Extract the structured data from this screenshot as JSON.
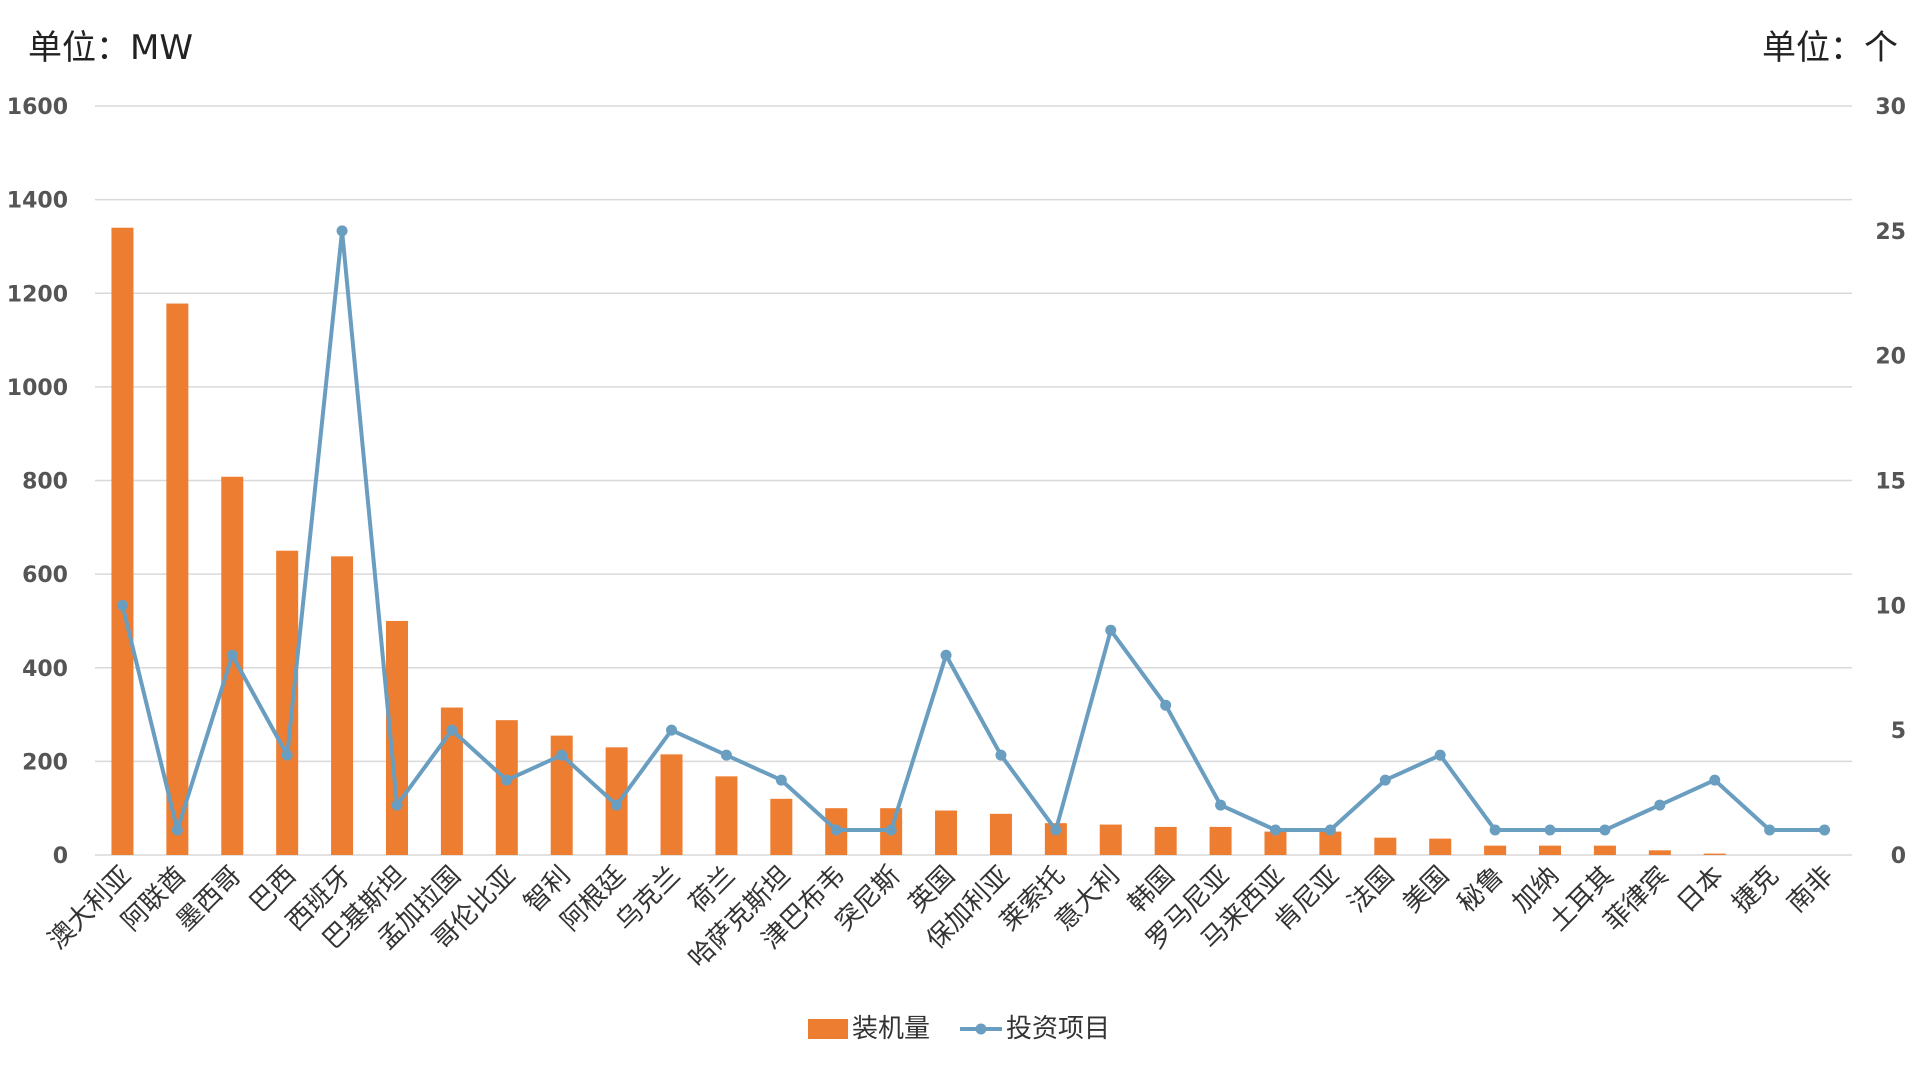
{
  "units": {
    "left": "单位：MW",
    "right": "单位：个"
  },
  "colors": {
    "bar": "#ED7D31",
    "line": "#6A9EC0",
    "grid": "#D9D9D9"
  },
  "chart_data": {
    "type": "bar",
    "categories": [
      "澳大利亚",
      "阿联酋",
      "墨西哥",
      "巴西",
      "西班牙",
      "巴基斯坦",
      "孟加拉国",
      "哥伦比亚",
      "智利",
      "阿根廷",
      "乌克兰",
      "荷兰",
      "哈萨克斯坦",
      "津巴布韦",
      "突尼斯",
      "英国",
      "保加利亚",
      "莱索托",
      "意大利",
      "韩国",
      "罗马尼亚",
      "马来西亚",
      "肯尼亚",
      "法国",
      "美国",
      "秘鲁",
      "加纳",
      "土耳其",
      "菲律宾",
      "日本",
      "捷克",
      "南非"
    ],
    "series": [
      {
        "name": "装机量",
        "type": "bar",
        "axis": "left",
        "values": [
          1340,
          1178,
          808,
          650,
          638,
          500,
          315,
          288,
          255,
          230,
          215,
          168,
          120,
          100,
          100,
          95,
          88,
          68,
          65,
          60,
          60,
          50,
          50,
          37,
          35,
          20,
          20,
          20,
          10,
          3,
          0,
          0
        ]
      },
      {
        "name": "投资项目",
        "type": "line",
        "axis": "right",
        "values": [
          10,
          1,
          8,
          4,
          25,
          2,
          5,
          3,
          4,
          2,
          5,
          4,
          3,
          1,
          1,
          8,
          4,
          1,
          9,
          6,
          2,
          1,
          1,
          3,
          4,
          1,
          1,
          1,
          2,
          3,
          1,
          1
        ]
      }
    ],
    "yleft": {
      "min": 0,
      "max": 1600,
      "ticks": [
        0,
        200,
        400,
        600,
        800,
        1000,
        1200,
        1400,
        1600
      ]
    },
    "yright": {
      "min": 0,
      "max": 30,
      "ticks": [
        0,
        5,
        10,
        15,
        20,
        25,
        30
      ]
    },
    "grid": true,
    "legend": "bottom"
  }
}
